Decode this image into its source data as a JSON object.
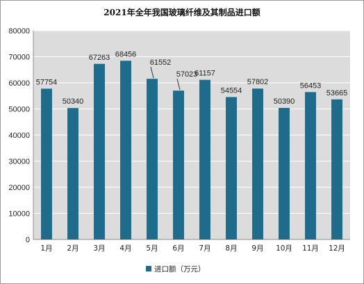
{
  "chart_data": {
    "type": "bar",
    "title": "2021年全年我国玻璃纤维及其制品进口额",
    "categories": [
      "1月",
      "2月",
      "3月",
      "4月",
      "5月",
      "6月",
      "7月",
      "8月",
      "9月",
      "10月",
      "11月",
      "12月"
    ],
    "series": [
      {
        "name": "进口额（万元）",
        "values": [
          57754,
          50340,
          67263,
          68456,
          61552,
          57023,
          61157,
          54554,
          57802,
          50390,
          56453,
          53665
        ]
      }
    ],
    "ylim": [
      0,
      80000
    ],
    "yticks": [
      0,
      10000,
      20000,
      30000,
      40000,
      50000,
      60000,
      70000,
      80000
    ],
    "grid": true,
    "legend": "bottom",
    "colors": {
      "bar": "#1f6b8c",
      "plot_bg": "#dcdcdc",
      "grid": "#ffffff"
    }
  }
}
